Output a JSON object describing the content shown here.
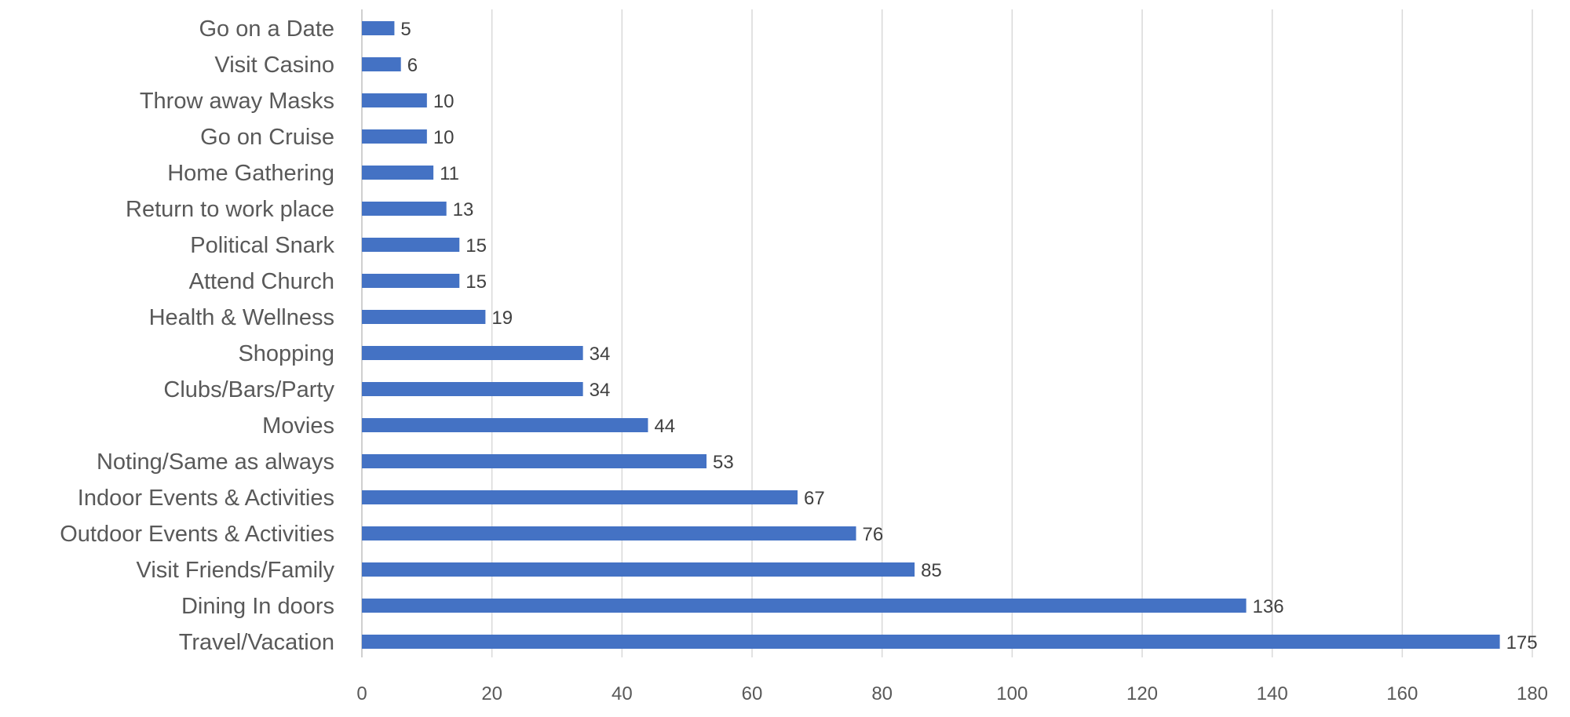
{
  "chart_data": {
    "type": "bar",
    "orientation": "horizontal",
    "title": "",
    "xlabel": "",
    "ylabel": "",
    "categories": [
      "Go on a Date",
      "Visit Casino",
      "Throw away Masks",
      "Go on Cruise",
      "Home Gathering",
      "Return to work place",
      "Political Snark",
      "Attend Church",
      "Health & Wellness",
      "Shopping",
      "Clubs/Bars/Party",
      "Movies",
      "Noting/Same as always",
      "Indoor Events & Activities",
      "Outdoor Events & Activities",
      "Visit Friends/Family",
      "Dining In doors",
      "Travel/Vacation"
    ],
    "values": [
      5,
      6,
      10,
      10,
      11,
      13,
      15,
      15,
      19,
      34,
      34,
      44,
      53,
      67,
      76,
      85,
      136,
      175
    ],
    "xlim": [
      0,
      180
    ],
    "xticks": [
      0,
      20,
      40,
      60,
      80,
      100,
      120,
      140,
      160,
      180
    ],
    "grid": "vertical",
    "legend": "none",
    "bar_color": "#4472c4",
    "data_labels": true
  }
}
